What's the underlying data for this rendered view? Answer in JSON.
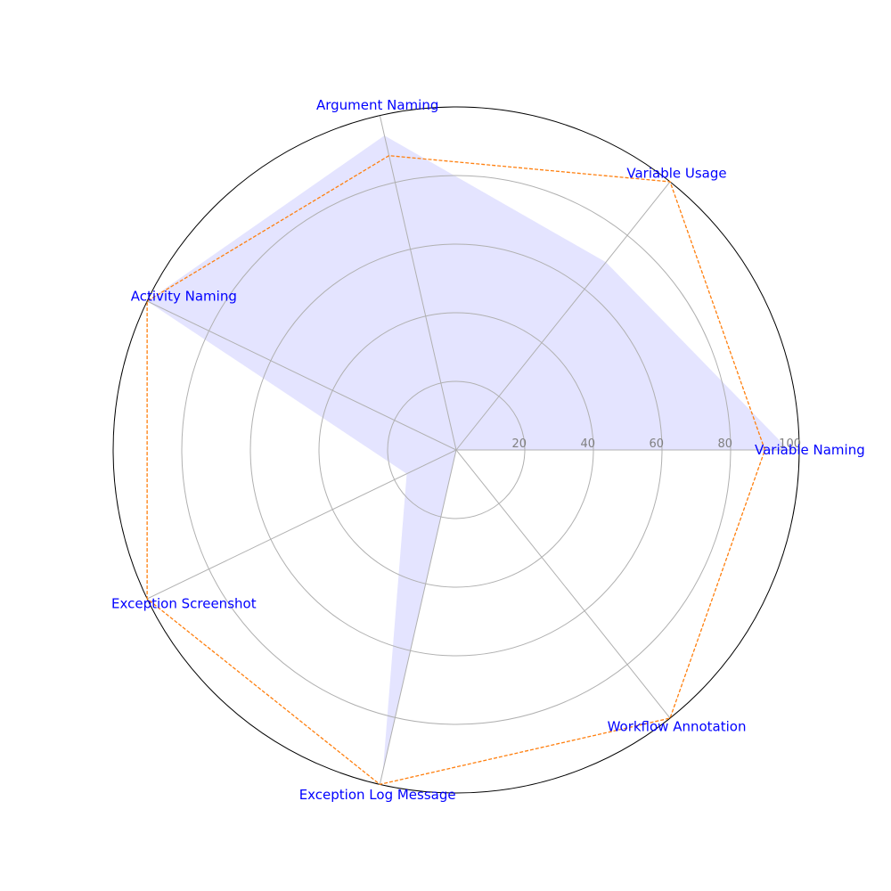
{
  "chart_data": {
    "type": "radar",
    "categories": [
      "Variable Naming",
      "Variable Usage",
      "Argument Naming",
      "Activity Naming",
      "Exception Screenshot",
      "Exception Log Message",
      "Workflow Annotation"
    ],
    "series": [
      {
        "values": [
          97,
          70,
          94,
          100,
          16,
          96,
          0
        ],
        "style": "filled",
        "color": "#e4e4ff"
      },
      {
        "values": [
          90,
          100,
          88,
          100,
          100,
          100,
          100
        ],
        "style": "dashed-line",
        "color": "#ff7f0e"
      }
    ],
    "radial_ticks": [
      "20",
      "40",
      "60",
      "80",
      "100"
    ],
    "radial_tick_values": [
      20,
      40,
      60,
      80,
      100
    ],
    "rlim": [
      0,
      100
    ],
    "grid": true,
    "label_color": "#0000ff",
    "title": "",
    "legend": null
  }
}
